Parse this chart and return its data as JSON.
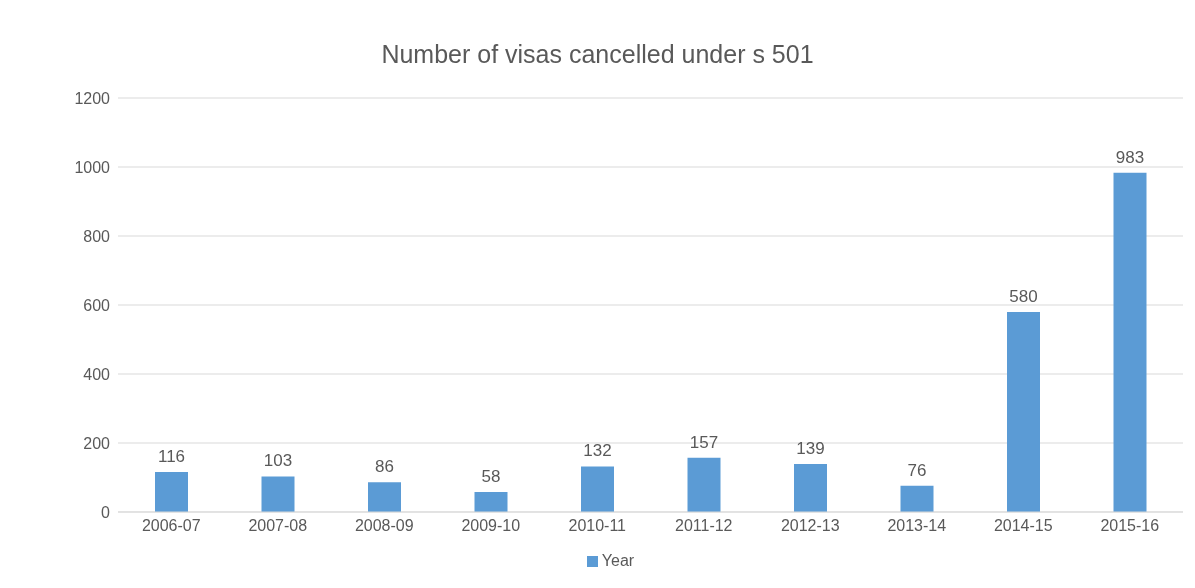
{
  "chart_data": {
    "type": "bar",
    "title": "Number of visas cancelled under s 501",
    "categories": [
      "2006-07",
      "2007-08",
      "2008-09",
      "2009-10",
      "2010-11",
      "2011-12",
      "2012-13",
      "2013-14",
      "2014-15",
      "2015-16"
    ],
    "series": [
      {
        "name": "Year",
        "color": "#5b9bd5",
        "values": [
          116,
          103,
          86,
          58,
          132,
          157,
          139,
          76,
          580,
          983
        ]
      }
    ],
    "ylim": [
      0,
      1200
    ],
    "yticks": [
      0,
      200,
      400,
      600,
      800,
      1000,
      1200
    ],
    "grid": "y",
    "legend": "bottom",
    "data_labels": true
  }
}
